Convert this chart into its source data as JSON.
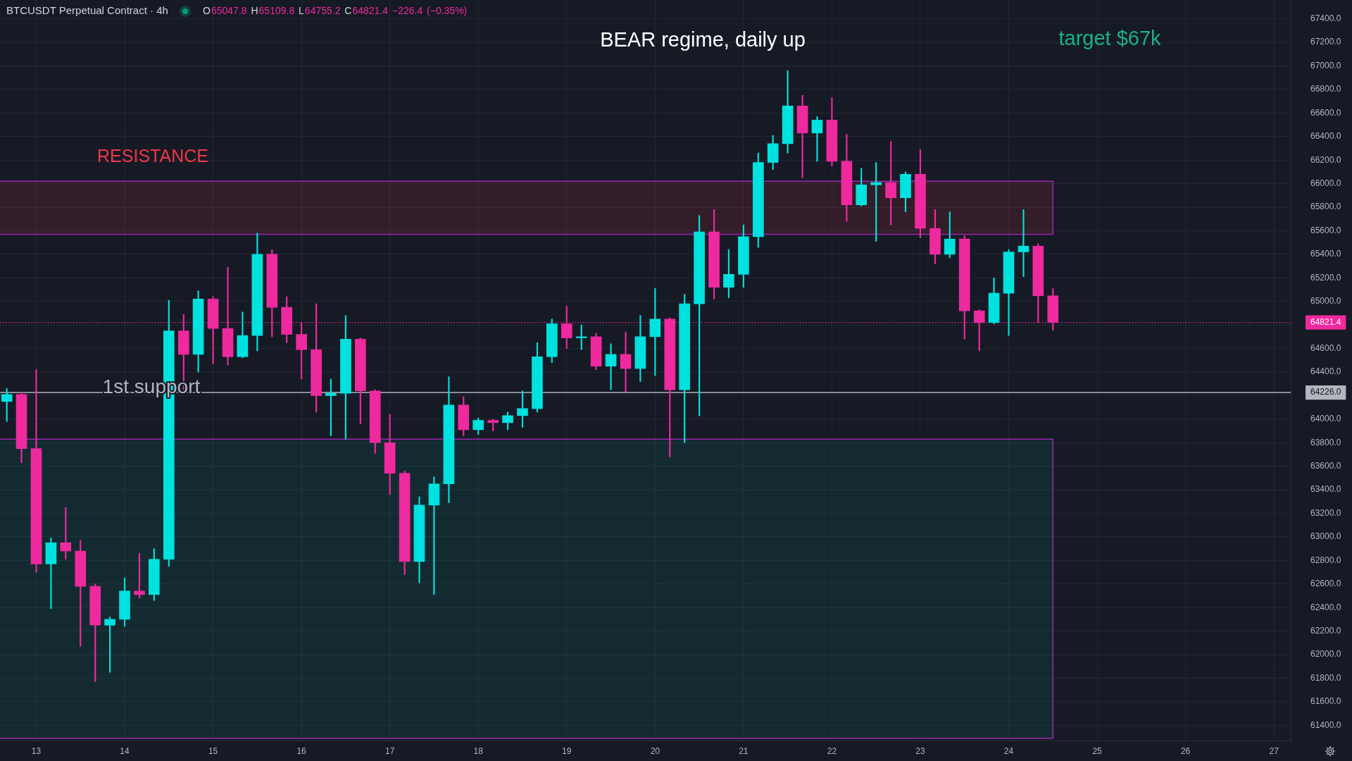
{
  "chart_data": {
    "type": "candlestick",
    "title": "BTCUSDT Perpetual Contract · 4h",
    "subtitle": "O65047.8 H65109.8 L64755.2 C64821.4 −226.4 (−0.35%)",
    "x": [
      12.667,
      12.833,
      13,
      13.167,
      13.333,
      13.5,
      13.667,
      13.833,
      14,
      14.167,
      14.333,
      14.5,
      14.667,
      14.833,
      15,
      15.167,
      15.333,
      15.5,
      15.667,
      15.833,
      16,
      16.167,
      16.333,
      16.5,
      16.667,
      16.833,
      17,
      17.167,
      17.333,
      17.5,
      17.667,
      17.833,
      18,
      18.167,
      18.333,
      18.5,
      18.667,
      18.833,
      19,
      19.167,
      19.333,
      19.5,
      19.667,
      19.833,
      20,
      20.167,
      20.333,
      20.5,
      20.667,
      20.833,
      21,
      21.167,
      21.333,
      21.5,
      21.667,
      21.833,
      22,
      22.167,
      22.333,
      22.5,
      22.667,
      22.833,
      23,
      23.167,
      23.333,
      23.5,
      23.667,
      23.833,
      24,
      24.167,
      24.333,
      24.5
    ],
    "ohlc": [
      [
        64150,
        64260,
        63980,
        64210
      ],
      [
        64210,
        64230,
        63630,
        63750
      ],
      [
        63750,
        64420,
        62700,
        62770
      ],
      [
        62770,
        62990,
        62390,
        62950
      ],
      [
        62950,
        63250,
        62810,
        62880
      ],
      [
        62880,
        62970,
        62070,
        62580
      ],
      [
        62580,
        62600,
        61770,
        62250
      ],
      [
        62250,
        62320,
        61850,
        62300
      ],
      [
        62300,
        62650,
        62240,
        62540
      ],
      [
        62540,
        62860,
        62480,
        62510
      ],
      [
        62510,
        62900,
        62460,
        62810
      ],
      [
        62810,
        65010,
        62750,
        64750
      ],
      [
        64750,
        64890,
        64250,
        64550
      ],
      [
        64550,
        65090,
        64400,
        65020
      ],
      [
        65020,
        65040,
        64470,
        64770
      ],
      [
        64770,
        65290,
        64460,
        64530
      ],
      [
        64530,
        64910,
        64520,
        64710
      ],
      [
        64710,
        65580,
        64580,
        65400
      ],
      [
        65400,
        65440,
        64700,
        64950
      ],
      [
        64950,
        65040,
        64650,
        64720
      ],
      [
        64720,
        64820,
        64340,
        64590
      ],
      [
        64590,
        64980,
        64060,
        64200
      ],
      [
        64200,
        64340,
        63860,
        64220
      ],
      [
        64220,
        64880,
        63830,
        64680
      ],
      [
        64680,
        64690,
        63960,
        64240
      ],
      [
        64240,
        64250,
        63710,
        63800
      ],
      [
        63800,
        64040,
        63360,
        63540
      ],
      [
        63540,
        63560,
        62680,
        62790
      ],
      [
        62790,
        63340,
        62610,
        63270
      ],
      [
        63270,
        63510,
        62510,
        63450
      ],
      [
        63450,
        64360,
        63290,
        64120
      ],
      [
        64120,
        64190,
        63860,
        63910
      ],
      [
        63910,
        64010,
        63870,
        63990
      ],
      [
        63990,
        64000,
        63900,
        63970
      ],
      [
        63970,
        64060,
        63910,
        64030
      ],
      [
        64030,
        64240,
        63930,
        64090
      ],
      [
        64090,
        64650,
        64060,
        64530
      ],
      [
        64530,
        64850,
        64480,
        64810
      ],
      [
        64810,
        64960,
        64600,
        64690
      ],
      [
        64690,
        64800,
        64590,
        64700
      ],
      [
        64700,
        64730,
        64420,
        64450
      ],
      [
        64450,
        64640,
        64250,
        64550
      ],
      [
        64550,
        64740,
        64230,
        64430
      ],
      [
        64430,
        64880,
        64320,
        64700
      ],
      [
        64700,
        65110,
        64370,
        64850
      ],
      [
        64850,
        64860,
        63680,
        64250
      ],
      [
        64250,
        65060,
        63800,
        64980
      ],
      [
        64980,
        65730,
        64030,
        65590
      ],
      [
        65590,
        65780,
        65020,
        65120
      ],
      [
        65120,
        65440,
        65030,
        65230
      ],
      [
        65230,
        65650,
        65120,
        65550
      ],
      [
        65550,
        66260,
        65460,
        66180
      ],
      [
        66180,
        66410,
        66120,
        66340
      ],
      [
        66340,
        66960,
        66260,
        66660
      ],
      [
        66660,
        66750,
        66050,
        66430
      ],
      [
        66430,
        66570,
        66190,
        66540
      ],
      [
        66540,
        66730,
        66150,
        66190
      ],
      [
        66190,
        66420,
        65680,
        65820
      ],
      [
        65820,
        66130,
        65810,
        65990
      ],
      [
        65990,
        66180,
        65510,
        66010
      ],
      [
        66010,
        66360,
        65650,
        65880
      ],
      [
        65880,
        66100,
        65760,
        66080
      ],
      [
        66080,
        66290,
        65540,
        65620
      ],
      [
        65620,
        65780,
        65320,
        65400
      ],
      [
        65400,
        65760,
        65370,
        65530
      ],
      [
        65530,
        65560,
        64680,
        64920
      ],
      [
        64920,
        64930,
        64580,
        64820
      ],
      [
        64820,
        65200,
        64810,
        65070
      ],
      [
        65070,
        65440,
        64710,
        65420
      ],
      [
        65420,
        65780,
        65210,
        65470
      ],
      [
        65470,
        65490,
        64820,
        65047.8
      ],
      [
        65047.8,
        65109.8,
        64755.2,
        64821.4
      ]
    ],
    "colors": [
      "#00e2df",
      "#ee2a9e",
      "#ee2a9e",
      "#00e2df",
      "#ee2a9e",
      "#ee2a9e",
      "#ee2a9e",
      "#00e2df",
      "#00e2df",
      "#ee2a9e",
      "#00e2df",
      "#00e2df",
      "#ee2a9e",
      "#00e2df",
      "#ee2a9e",
      "#ee2a9e",
      "#00e2df",
      "#00e2df",
      "#ee2a9e",
      "#ee2a9e",
      "#ee2a9e",
      "#ee2a9e",
      "#00e2df",
      "#00e2df",
      "#ee2a9e",
      "#ee2a9e",
      "#ee2a9e",
      "#ee2a9e",
      "#00e2df",
      "#00e2df",
      "#00e2df",
      "#ee2a9e",
      "#00e2df",
      "#ee2a9e",
      "#00e2df",
      "#00e2df",
      "#00e2df",
      "#00e2df",
      "#ee2a9e",
      "#00e2df",
      "#ee2a9e",
      "#00e2df",
      "#ee2a9e",
      "#00e2df",
      "#00e2df",
      "#ee2a9e",
      "#00e2df",
      "#00e2df",
      "#ee2a9e",
      "#00e2df",
      "#00e2df",
      "#00e2df",
      "#00e2df",
      "#00e2df",
      "#ee2a9e",
      "#00e2df",
      "#ee2a9e",
      "#ee2a9e",
      "#00e2df",
      "#00e2df",
      "#ee2a9e",
      "#00e2df",
      "#ee2a9e",
      "#ee2a9e",
      "#00e2df",
      "#ee2a9e",
      "#ee2a9e",
      "#00e2df",
      "#00e2df",
      "#00e2df",
      "#ee2a9e",
      "#ee2a9e"
    ],
    "xlim": [
      12.59,
      27.19
    ],
    "xticks": [
      13,
      14,
      15,
      16,
      17,
      18,
      19,
      20,
      21,
      22,
      23,
      24,
      25,
      26,
      27
    ],
    "ylim": [
      61270,
      67560
    ],
    "yticks": [
      {
        "value": 61400,
        "label": "61400.0"
      },
      {
        "value": 61600,
        "label": "61600.0"
      },
      {
        "value": 61800,
        "label": "61800.0"
      },
      {
        "value": 62000,
        "label": "62000.0"
      },
      {
        "value": 62200,
        "label": "62200.0"
      },
      {
        "value": 62400,
        "label": "62400.0"
      },
      {
        "value": 62600,
        "label": "62600.0"
      },
      {
        "value": 62800,
        "label": "62800.0"
      },
      {
        "value": 63000,
        "label": "63000.0"
      },
      {
        "value": 63200,
        "label": "63200.0"
      },
      {
        "value": 63400,
        "label": "63400.0"
      },
      {
        "value": 63600,
        "label": "63600.0"
      },
      {
        "value": 63800,
        "label": "63800.0"
      },
      {
        "value": 64000,
        "label": "64000.0"
      },
      {
        "value": 64200,
        "label": null
      },
      {
        "value": 64226,
        "label": "64226.0"
      },
      {
        "value": 64400,
        "label": "64400.0"
      },
      {
        "value": 64600,
        "label": "64600.0"
      },
      {
        "value": 64800,
        "label": null
      },
      {
        "value": 64821.4,
        "label": "64821.4"
      },
      {
        "value": 65000,
        "label": "65000.0"
      },
      {
        "value": 65200,
        "label": "65200.0"
      },
      {
        "value": 65400,
        "label": "65400.0"
      },
      {
        "value": 65600,
        "label": "65600.0"
      },
      {
        "value": 65800,
        "label": "65800.0"
      },
      {
        "value": 66000,
        "label": "66000.0"
      },
      {
        "value": 66200,
        "label": "66200.0"
      },
      {
        "value": 66400,
        "label": "66400.0"
      },
      {
        "value": 66600,
        "label": "66600.0"
      },
      {
        "value": 66800,
        "label": "66800.0"
      },
      {
        "value": 67000,
        "label": "67000.0"
      },
      {
        "value": 67200,
        "label": "67200.0"
      },
      {
        "value": 67400,
        "label": "67400.0"
      }
    ],
    "grid": true,
    "bands": [
      {
        "axis": "y",
        "from": 65570,
        "to": 66020,
        "label": "RESISTANCE",
        "color": "#f23645"
      },
      {
        "axis": "y",
        "from": 61290,
        "to": 63830,
        "color": "#089981"
      }
    ],
    "ref_lines": [
      {
        "axis": "y",
        "value": 64226,
        "label": "1st support",
        "color": "#b2b5be"
      },
      {
        "axis": "y",
        "value": 64821.4,
        "color": "#f0289f",
        "line_style": "dotted"
      }
    ],
    "annotations": [
      "BEAR regime, daily up",
      "target $67k"
    ]
  }
}
